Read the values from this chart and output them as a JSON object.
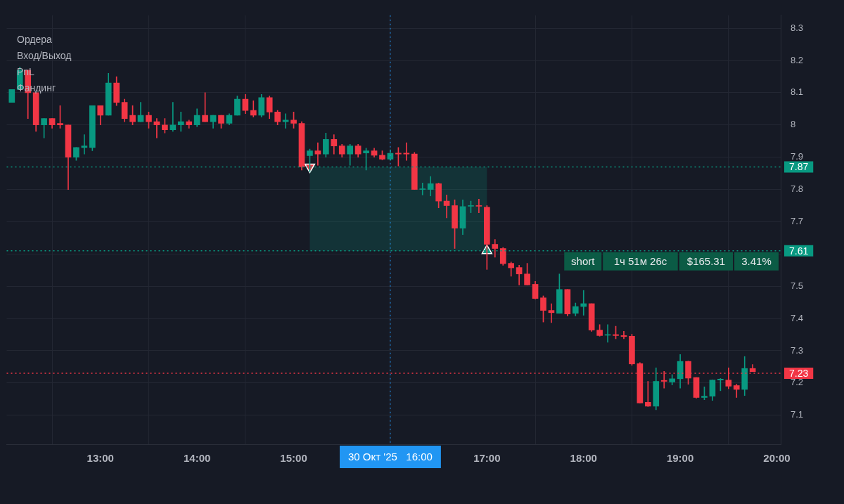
{
  "chart_data": {
    "type": "candlestick",
    "x": [
      12.0833,
      12.1667,
      12.25,
      12.3333,
      12.4167,
      12.5,
      12.5833,
      12.6667,
      12.75,
      12.8333,
      12.9167,
      13,
      13.0833,
      13.1667,
      13.25,
      13.3333,
      13.4167,
      13.5,
      13.5833,
      13.6667,
      13.75,
      13.8333,
      13.9167,
      14,
      14.0833,
      14.1667,
      14.25,
      14.3333,
      14.4167,
      14.5,
      14.5833,
      14.6667,
      14.75,
      14.8333,
      14.9167,
      15,
      15.0833,
      15.1667,
      15.25,
      15.3333,
      15.4167,
      15.5,
      15.5833,
      15.6667,
      15.75,
      15.8333,
      15.9167,
      16,
      16.0833,
      16.1667,
      16.25,
      16.3333,
      16.4167,
      16.5,
      16.5833,
      16.6667,
      16.75,
      16.8333,
      16.9167,
      17,
      17.0833,
      17.1667,
      17.25,
      17.3333,
      17.4167,
      17.5,
      17.5833,
      17.6667,
      17.75,
      17.8333,
      17.9167,
      18,
      18.0833,
      18.1667,
      18.25,
      18.3333,
      18.4167,
      18.5,
      18.5833,
      18.6667,
      18.75,
      18.8333,
      18.9167,
      19,
      19.0833,
      19.1667,
      19.25,
      19.3333,
      19.4167,
      19.5,
      19.5833,
      19.6667,
      19.75
    ],
    "ohlc": [
      [
        8.07,
        8.11,
        8.07,
        8.11
      ],
      [
        8.11,
        8.18,
        8.11,
        8.17
      ],
      [
        8.17,
        8.17,
        8.02,
        8.1
      ],
      [
        8.1,
        8.1,
        7.98,
        8.0
      ],
      [
        8.0,
        8.02,
        7.96,
        8.02
      ],
      [
        8.02,
        8.02,
        7.99,
        8.0
      ],
      [
        8.005,
        8.06,
        7.99,
        8.0
      ],
      [
        8.0,
        8.0,
        7.8,
        7.9
      ],
      [
        7.9,
        7.93,
        7.89,
        7.93
      ],
      [
        7.93,
        7.97,
        7.91,
        7.935
      ],
      [
        7.93,
        8.06,
        7.92,
        8.06
      ],
      [
        8.06,
        8.06,
        8.0,
        8.03
      ],
      [
        8.03,
        8.16,
        8.03,
        8.13
      ],
      [
        8.13,
        8.15,
        8.06,
        8.07
      ],
      [
        8.07,
        8.08,
        8.01,
        8.02
      ],
      [
        8.03,
        8.06,
        8.0,
        8.01
      ],
      [
        8.01,
        8.07,
        8.01,
        8.03
      ],
      [
        8.03,
        8.04,
        7.99,
        8.01
      ],
      [
        8.01,
        8.02,
        7.96,
        8.0
      ],
      [
        8.0,
        8.02,
        7.975,
        7.985
      ],
      [
        7.985,
        8.07,
        7.98,
        8.0
      ],
      [
        8.0,
        8.04,
        7.98,
        8.01
      ],
      [
        8.01,
        8.015,
        7.99,
        8.0
      ],
      [
        8.0,
        8.05,
        7.995,
        8.03
      ],
      [
        8.03,
        8.1,
        8.01,
        8.01
      ],
      [
        8.01,
        8.03,
        7.99,
        8.03
      ],
      [
        8.03,
        8.03,
        7.99,
        8.005
      ],
      [
        8.005,
        8.035,
        8.0,
        8.03
      ],
      [
        8.03,
        8.09,
        8.03,
        8.08
      ],
      [
        8.08,
        8.095,
        8.035,
        8.045
      ],
      [
        8.045,
        8.075,
        8.025,
        8.03
      ],
      [
        8.03,
        8.095,
        8.025,
        8.085
      ],
      [
        8.085,
        8.09,
        8.02,
        8.04
      ],
      [
        8.04,
        8.045,
        8.0,
        8.01
      ],
      [
        8.01,
        8.035,
        7.99,
        8.015
      ],
      [
        8.015,
        8.04,
        7.99,
        8.005
      ],
      [
        8.005,
        8.01,
        7.86,
        7.87
      ],
      [
        7.905,
        7.925,
        7.855,
        7.92
      ],
      [
        7.92,
        7.945,
        7.875,
        7.91
      ],
      [
        7.91,
        7.975,
        7.9,
        7.955
      ],
      [
        7.955,
        7.97,
        7.91,
        7.935
      ],
      [
        7.935,
        7.94,
        7.9,
        7.91
      ],
      [
        7.91,
        7.94,
        7.875,
        7.935
      ],
      [
        7.935,
        7.94,
        7.9,
        7.91
      ],
      [
        7.913,
        7.928,
        7.86,
        7.92
      ],
      [
        7.92,
        7.928,
        7.9,
        7.906
      ],
      [
        7.906,
        7.92,
        7.892,
        7.894
      ],
      [
        7.894,
        7.923,
        7.89,
        7.912
      ],
      [
        7.913,
        7.93,
        7.873,
        7.91
      ],
      [
        7.913,
        7.945,
        7.89,
        7.91
      ],
      [
        7.91,
        7.915,
        7.8,
        7.8
      ],
      [
        7.8,
        7.82,
        7.783,
        7.802
      ],
      [
        7.8,
        7.84,
        7.78,
        7.818
      ],
      [
        7.818,
        7.82,
        7.743,
        7.764
      ],
      [
        7.764,
        7.783,
        7.712,
        7.75
      ],
      [
        7.75,
        7.768,
        7.617,
        7.68
      ],
      [
        7.68,
        7.768,
        7.66,
        7.747
      ],
      [
        7.748,
        7.764,
        7.728,
        7.75
      ],
      [
        7.75,
        7.77,
        7.728,
        7.748
      ],
      [
        7.745,
        7.75,
        7.552,
        7.63
      ],
      [
        7.63,
        7.645,
        7.59,
        7.617
      ],
      [
        7.617,
        7.62,
        7.565,
        7.57
      ],
      [
        7.571,
        7.575,
        7.531,
        7.557
      ],
      [
        7.558,
        7.565,
        7.504,
        7.538
      ],
      [
        7.538,
        7.571,
        7.504,
        7.504
      ],
      [
        7.506,
        7.515,
        7.46,
        7.462
      ],
      [
        7.464,
        7.47,
        7.389,
        7.425
      ],
      [
        7.425,
        7.446,
        7.387,
        7.418
      ],
      [
        7.416,
        7.538,
        7.416,
        7.49
      ],
      [
        7.49,
        7.49,
        7.408,
        7.414
      ],
      [
        7.416,
        7.448,
        7.408,
        7.437
      ],
      [
        7.437,
        7.487,
        7.41,
        7.446
      ],
      [
        7.446,
        7.446,
        7.36,
        7.364
      ],
      [
        7.364,
        7.381,
        7.345,
        7.347
      ],
      [
        7.348,
        7.381,
        7.326,
        7.35
      ],
      [
        7.35,
        7.376,
        7.337,
        7.347
      ],
      [
        7.347,
        7.36,
        7.337,
        7.344
      ],
      [
        7.345,
        7.351,
        7.255,
        7.259
      ],
      [
        7.26,
        7.263,
        7.138,
        7.138
      ],
      [
        7.14,
        7.205,
        7.127,
        7.128
      ],
      [
        7.128,
        7.247,
        7.117,
        7.205
      ],
      [
        7.208,
        7.236,
        7.184,
        7.205
      ],
      [
        7.203,
        7.226,
        7.194,
        7.213
      ],
      [
        7.213,
        7.288,
        7.184,
        7.267
      ],
      [
        7.267,
        7.268,
        7.196,
        7.215
      ],
      [
        7.217,
        7.217,
        7.153,
        7.155
      ],
      [
        7.155,
        7.188,
        7.148,
        7.159
      ],
      [
        7.159,
        7.21,
        7.146,
        7.209
      ],
      [
        7.209,
        7.214,
        7.176,
        7.212
      ],
      [
        7.209,
        7.247,
        7.182,
        7.19
      ],
      [
        7.192,
        7.196,
        7.155,
        7.18
      ],
      [
        7.18,
        7.282,
        7.161,
        7.245
      ],
      [
        7.245,
        7.257,
        7.235,
        7.235
      ]
    ],
    "colors": [
      "#089981",
      "#089981",
      "#f23645",
      "#f23645",
      "#089981",
      "#f23645",
      "#f23645",
      "#f23645",
      "#089981",
      "#089981",
      "#089981",
      "#f23645",
      "#089981",
      "#f23645",
      "#f23645",
      "#f23645",
      "#089981",
      "#f23645",
      "#f23645",
      "#f23645",
      "#089981",
      "#089981",
      "#f23645",
      "#089981",
      "#f23645",
      "#089981",
      "#f23645",
      "#089981",
      "#089981",
      "#f23645",
      "#f23645",
      "#089981",
      "#f23645",
      "#f23645",
      "#089981",
      "#f23645",
      "#f23645",
      "#089981",
      "#f23645",
      "#089981",
      "#f23645",
      "#f23645",
      "#089981",
      "#f23645",
      "#089981",
      "#f23645",
      "#f23645",
      "#089981",
      "#f23645",
      "#f23645",
      "#f23645",
      "#089981",
      "#089981",
      "#f23645",
      "#f23645",
      "#f23645",
      "#089981",
      "#089981",
      "#f23645",
      "#f23645",
      "#f23645",
      "#f23645",
      "#f23645",
      "#f23645",
      "#f23645",
      "#f23645",
      "#f23645",
      "#f23645",
      "#089981",
      "#f23645",
      "#089981",
      "#089981",
      "#f23645",
      "#f23645",
      "#089981",
      "#f23645",
      "#f23645",
      "#f23645",
      "#f23645",
      "#f23645",
      "#089981",
      "#f23645",
      "#089981",
      "#089981",
      "#f23645",
      "#f23645",
      "#089981",
      "#089981",
      "#089981",
      "#f23645",
      "#f23645",
      "#089981",
      "#f23645"
    ],
    "series": [
      {
        "type": "scatter",
        "x": [
          15.1667,
          17
        ],
        "values": [
          7.87,
          7.61
        ],
        "colors": [
          "#f23645",
          "#089981"
        ]
      }
    ],
    "marker": "triangle",
    "xlim": [
      12.03,
      20.04
    ],
    "xticks": [
      {
        "value": 13,
        "label": "13:00"
      },
      {
        "value": 14,
        "label": "14:00"
      },
      {
        "value": 15,
        "label": "15:00"
      },
      {
        "value": 17,
        "label": "17:00"
      },
      {
        "value": 18,
        "label": "18:00"
      },
      {
        "value": 19,
        "label": "19:00"
      },
      {
        "value": 20,
        "label": "20:00"
      }
    ],
    "ylim": [
      7.01,
      8.34
    ],
    "yticks": [
      7.1,
      7.2,
      7.3,
      7.4,
      7.5,
      {
        "value": 7.6,
        "label": null
      },
      7.7,
      7.8,
      7.9,
      8,
      8.1,
      8.2,
      8.3
    ],
    "grid": true,
    "bands": [
      {
        "axis": "y",
        "from": 7.61,
        "to": 7.87,
        "color": "#089981"
      }
    ],
    "ref_lines": [
      {
        "axis": "y",
        "value": 7.87,
        "label": "7.87",
        "color": "#089981",
        "line_style": "dotted"
      },
      {
        "axis": "y",
        "value": 7.61,
        "label": "7.61",
        "color": "#089981",
        "line_style": "dotted"
      },
      {
        "axis": "y",
        "value": 7.23,
        "label": "7.23",
        "color": "#f23645",
        "line_style": "dotted"
      },
      {
        "axis": "x",
        "value": 16,
        "label": "30 Окт '25   16:00",
        "color": "#2196f3",
        "line_style": "dotted"
      }
    ],
    "annotations": [
      "Ордера",
      "Вход/Выход",
      "PnL",
      "Фандинг",
      {
        "text": "short",
        "x": 17.8,
        "y": 7.61
      },
      {
        "text": "1ч 51м 26с",
        "x": 18.2,
        "y": 7.61
      },
      {
        "text": "$165.31",
        "x": 18.99,
        "y": 7.61
      },
      {
        "text": "3.41%",
        "x": 19.56,
        "y": 7.61
      }
    ]
  }
}
